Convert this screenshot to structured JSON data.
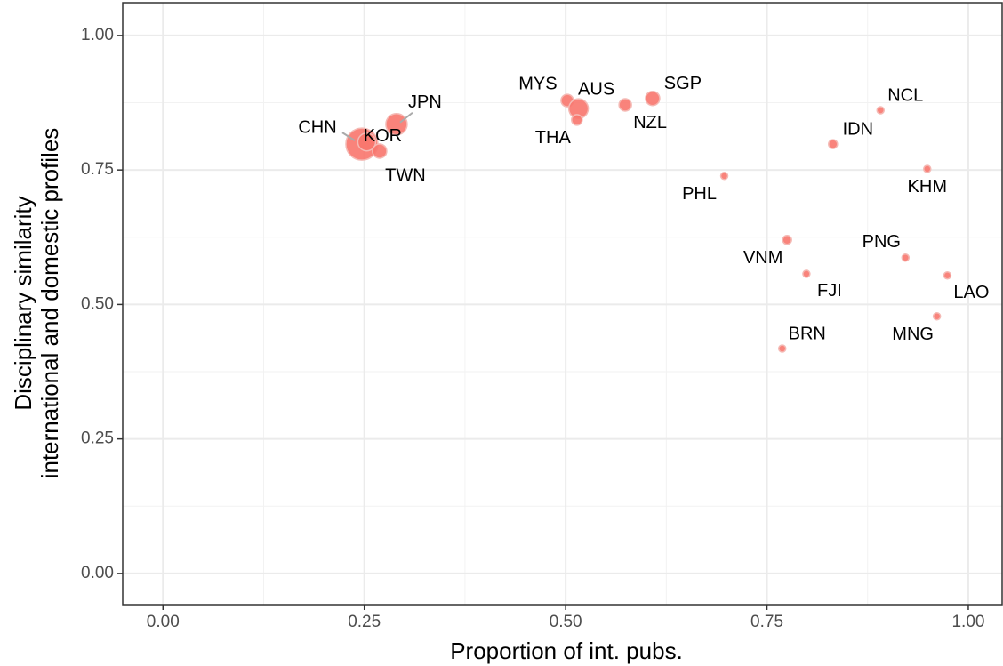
{
  "chart_data": {
    "type": "scatter",
    "xlabel": "Proportion of int. pubs.",
    "ylabel": [
      "Disciplinary similarity",
      "international and domestic profiles"
    ],
    "color": "#f8766d",
    "grid": true,
    "xlim": [
      -0.05,
      1.042
    ],
    "ylim": [
      -0.058,
      1.061
    ],
    "xticks": [
      {
        "value": 0,
        "label": "0.00"
      },
      {
        "value": 0.25,
        "label": "0.25"
      },
      {
        "value": 0.5,
        "label": "0.50"
      },
      {
        "value": 0.75,
        "label": "0.75"
      },
      {
        "value": 1,
        "label": "1.00"
      }
    ],
    "yticks": [
      {
        "value": 0,
        "label": "0.00"
      },
      {
        "value": 0.25,
        "label": "0.25"
      },
      {
        "value": 0.5,
        "label": "0.50"
      },
      {
        "value": 0.75,
        "label": "0.75"
      },
      {
        "value": 1,
        "label": "1.00"
      }
    ],
    "xminorticks": [
      0.125,
      0.375,
      0.625,
      0.875
    ],
    "yminorticks": [
      0.125,
      0.375,
      0.625,
      0.875
    ],
    "labels": [
      "CHN",
      "KOR",
      "TWN",
      "JPN",
      "MYS",
      "AUS",
      "THA",
      "NZL",
      "SGP",
      "NCL",
      "IDN",
      "KHM",
      "PHL",
      "VNM",
      "PNG",
      "FJI",
      "LAO",
      "MNG",
      "BRN"
    ],
    "x": [
      0.247,
      0.253,
      0.269,
      0.29,
      0.502,
      0.516,
      0.514,
      0.574,
      0.608,
      0.891,
      0.832,
      0.949,
      0.697,
      0.775,
      0.922,
      0.799,
      0.974,
      0.961,
      0.769
    ],
    "y": [
      0.798,
      0.802,
      0.785,
      0.835,
      0.879,
      0.864,
      0.843,
      0.871,
      0.883,
      0.861,
      0.798,
      0.752,
      0.739,
      0.62,
      0.587,
      0.557,
      0.554,
      0.478,
      0.418
    ],
    "sizes": [
      18,
      10,
      8,
      12,
      7,
      11,
      6,
      7,
      8,
      4,
      5,
      4,
      4,
      5,
      4,
      4,
      4,
      4,
      4
    ]
  }
}
